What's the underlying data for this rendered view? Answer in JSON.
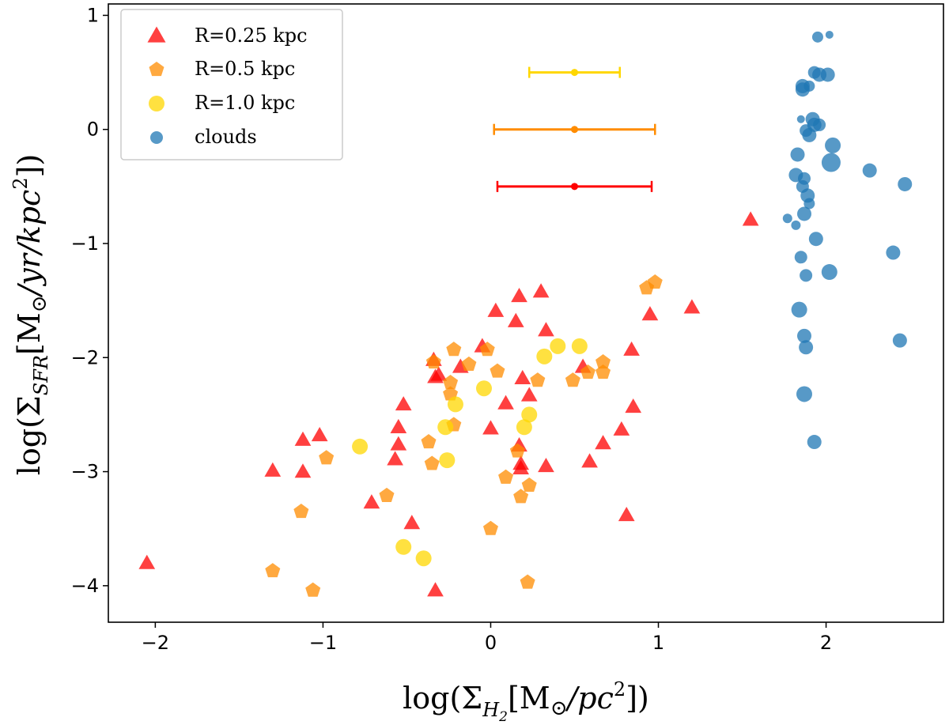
{
  "chart_data": {
    "type": "scatter",
    "xlabel": "log(Σ",
    "xlabel_sub": "H",
    "xlabel_subsub": "2",
    "xlabel_rest": "[M",
    "xlabel_odot": "⊙",
    "xlabel_unit": "/pc",
    "xlabel_sup": "2",
    "xlabel_end": "])",
    "ylabel": "log(Σ",
    "ylabel_sub": "SFR",
    "ylabel_rest": "[M",
    "ylabel_odot": "⊙",
    "ylabel_unit": "/yr/kpc",
    "ylabel_sup": "2",
    "ylabel_end": "])",
    "xlim": [
      -2.28,
      2.7
    ],
    "ylim": [
      -4.32,
      1.1
    ],
    "xticks": [
      -2,
      -1,
      0,
      1,
      2
    ],
    "xtick_labels": [
      "−2",
      "−1",
      "0",
      "1",
      "2"
    ],
    "yticks": [
      -4,
      -3,
      -2,
      -1,
      0,
      1
    ],
    "ytick_labels": [
      "−4",
      "−3",
      "−2",
      "−1",
      "0",
      "1"
    ],
    "legend": {
      "placement": "top-left",
      "entries": [
        {
          "label": "R=0.25 kpc",
          "marker": "triangle",
          "color": "#ff0000"
        },
        {
          "label": "R=0.5 kpc",
          "marker": "pentagon",
          "color": "#ff8c00"
        },
        {
          "label": "R=1.0 kpc",
          "marker": "circle",
          "color": "#ffd700"
        },
        {
          "label": "clouds",
          "marker": "circle",
          "color": "#1f77b4"
        }
      ]
    },
    "errorbars": [
      {
        "name": "R=1.0 kpc",
        "color": "#ffd700",
        "x": 0.5,
        "y": 0.5,
        "xerr": [
          0.27,
          0.27
        ]
      },
      {
        "name": "R=0.5 kpc",
        "color": "#ff8c00",
        "x": 0.5,
        "y": 0.0,
        "xerr": [
          0.48,
          0.48
        ]
      },
      {
        "name": "R=0.25 kpc",
        "color": "#ff0000",
        "x": 0.5,
        "y": -0.5,
        "xerr": [
          0.46,
          0.46
        ]
      }
    ],
    "series": [
      {
        "name": "R=0.25 kpc",
        "marker": "triangle",
        "color": "#ff0000",
        "points": [
          [
            -2.05,
            -3.8
          ],
          [
            -1.3,
            -2.99
          ],
          [
            -1.12,
            -2.72
          ],
          [
            -1.12,
            -3.0
          ],
          [
            -1.02,
            -2.68
          ],
          [
            -0.71,
            -3.27
          ],
          [
            -0.47,
            -3.45
          ],
          [
            -0.55,
            -2.61
          ],
          [
            -0.55,
            -2.76
          ],
          [
            -0.52,
            -2.41
          ],
          [
            -0.57,
            -2.89
          ],
          [
            -0.34,
            -2.02
          ],
          [
            -0.33,
            -2.17
          ],
          [
            -0.33,
            -4.04
          ],
          [
            -0.31,
            -2.15
          ],
          [
            -0.18,
            -2.08
          ],
          [
            -0.05,
            -1.9
          ],
          [
            0.0,
            -2.62
          ],
          [
            0.03,
            -1.59
          ],
          [
            0.09,
            -2.4
          ],
          [
            0.15,
            -1.68
          ],
          [
            0.17,
            -2.77
          ],
          [
            0.18,
            -2.93
          ],
          [
            0.18,
            -2.97
          ],
          [
            0.17,
            -1.46
          ],
          [
            0.19,
            -2.18
          ],
          [
            0.23,
            -2.33
          ],
          [
            0.3,
            -1.42
          ],
          [
            0.33,
            -1.76
          ],
          [
            0.33,
            -2.95
          ],
          [
            0.55,
            -2.08
          ],
          [
            0.59,
            -2.91
          ],
          [
            0.67,
            -2.75
          ],
          [
            0.78,
            -2.63
          ],
          [
            0.81,
            -3.38
          ],
          [
            0.84,
            -1.93
          ],
          [
            0.85,
            -2.43
          ],
          [
            0.95,
            -1.62
          ],
          [
            1.2,
            -1.56
          ],
          [
            1.55,
            -0.79
          ]
        ]
      },
      {
        "name": "R=0.5 kpc",
        "marker": "pentagon",
        "color": "#ff8c00",
        "points": [
          [
            -1.3,
            -3.87
          ],
          [
            -1.13,
            -3.35
          ],
          [
            -1.06,
            -4.04
          ],
          [
            -0.98,
            -2.88
          ],
          [
            -0.62,
            -3.21
          ],
          [
            -0.37,
            -2.74
          ],
          [
            -0.35,
            -2.93
          ],
          [
            -0.34,
            -2.04
          ],
          [
            -0.24,
            -2.22
          ],
          [
            -0.24,
            -2.32
          ],
          [
            -0.22,
            -2.59
          ],
          [
            -0.22,
            -1.93
          ],
          [
            -0.13,
            -2.06
          ],
          [
            -0.02,
            -1.93
          ],
          [
            0.0,
            -3.5
          ],
          [
            0.04,
            -2.12
          ],
          [
            0.09,
            -3.05
          ],
          [
            0.16,
            -2.82
          ],
          [
            0.18,
            -3.22
          ],
          [
            0.22,
            -3.97
          ],
          [
            0.23,
            -3.12
          ],
          [
            0.28,
            -2.2
          ],
          [
            0.49,
            -2.2
          ],
          [
            0.58,
            -2.13
          ],
          [
            0.67,
            -2.13
          ],
          [
            0.67,
            -2.04
          ],
          [
            0.93,
            -1.39
          ],
          [
            0.98,
            -1.34
          ]
        ]
      },
      {
        "name": "R=1.0 kpc",
        "marker": "circle",
        "color": "#ffd700",
        "points": [
          [
            -0.78,
            -2.78
          ],
          [
            -0.52,
            -3.66
          ],
          [
            -0.4,
            -3.76
          ],
          [
            -0.27,
            -2.61
          ],
          [
            -0.26,
            -2.9
          ],
          [
            -0.21,
            -2.41
          ],
          [
            -0.04,
            -2.27
          ],
          [
            0.2,
            -2.61
          ],
          [
            0.23,
            -2.5
          ],
          [
            0.32,
            -1.99
          ],
          [
            0.4,
            -1.9
          ],
          [
            0.53,
            -1.9
          ]
        ]
      },
      {
        "name": "clouds",
        "marker": "circle",
        "color": "#1f77b4",
        "points": [
          [
            1.95,
            0.81
          ],
          [
            2.02,
            0.83
          ],
          [
            1.93,
            0.5
          ],
          [
            1.96,
            0.48
          ],
          [
            2.01,
            0.48
          ],
          [
            1.86,
            0.38
          ],
          [
            1.86,
            0.35
          ],
          [
            1.9,
            0.38
          ],
          [
            1.85,
            0.09
          ],
          [
            1.92,
            0.09
          ],
          [
            1.93,
            0.04
          ],
          [
            1.96,
            0.04
          ],
          [
            1.88,
            -0.01
          ],
          [
            1.9,
            -0.05
          ],
          [
            2.04,
            -0.14
          ],
          [
            1.83,
            -0.22
          ],
          [
            2.03,
            -0.29
          ],
          [
            2.26,
            -0.36
          ],
          [
            1.82,
            -0.4
          ],
          [
            1.87,
            -0.43
          ],
          [
            2.47,
            -0.48
          ],
          [
            1.86,
            -0.5
          ],
          [
            1.89,
            -0.58
          ],
          [
            1.9,
            -0.65
          ],
          [
            1.87,
            -0.74
          ],
          [
            1.77,
            -0.78
          ],
          [
            1.82,
            -0.84
          ],
          [
            1.94,
            -0.96
          ],
          [
            2.4,
            -1.08
          ],
          [
            1.85,
            -1.12
          ],
          [
            2.02,
            -1.25
          ],
          [
            1.88,
            -1.28
          ],
          [
            1.84,
            -1.58
          ],
          [
            1.87,
            -1.81
          ],
          [
            1.88,
            -1.91
          ],
          [
            2.44,
            -1.85
          ],
          [
            1.87,
            -2.32
          ],
          [
            1.93,
            -2.74
          ]
        ],
        "sizes": [
          7,
          5,
          8,
          9,
          9,
          9,
          9,
          7,
          5,
          9,
          9,
          8,
          8,
          9,
          10,
          9,
          12,
          9,
          9,
          8,
          9,
          8,
          9,
          7,
          9,
          6,
          6,
          9,
          9,
          8,
          10,
          8,
          10,
          9,
          9,
          9,
          10,
          9
        ]
      }
    ]
  }
}
